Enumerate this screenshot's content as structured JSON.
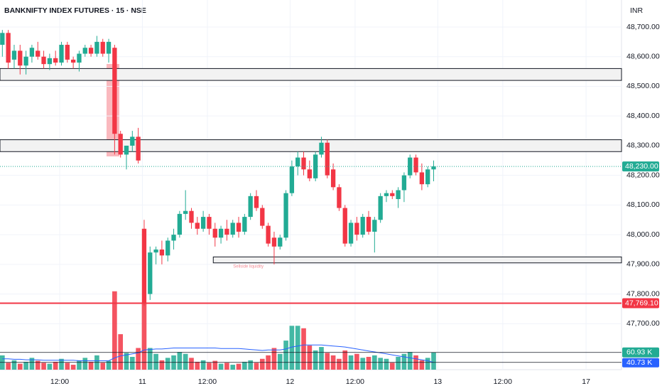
{
  "chart_data": {
    "type": "candlestick",
    "title": "BANKNIFTY INDEX FUTURES · 15 · NSE",
    "currency": "INR",
    "up_color": "#22ab94",
    "down_color": "#f23645",
    "categories": [
      null,
      null,
      null,
      null,
      null,
      null,
      null,
      null,
      null,
      null,
      null,
      null,
      null,
      null,
      null,
      null,
      null,
      null,
      null,
      null,
      null,
      null,
      null,
      null,
      null,
      null,
      null,
      null,
      null,
      null,
      null,
      null,
      null,
      null,
      null,
      null,
      null,
      null,
      null,
      null,
      null,
      null,
      null,
      null,
      null,
      null,
      null,
      null,
      null,
      null,
      null,
      null,
      null,
      null,
      null,
      null,
      null,
      null,
      null,
      null,
      null,
      null,
      null,
      null,
      null,
      null,
      null,
      null,
      null,
      null,
      null,
      null,
      null,
      null
    ],
    "open": [
      48640,
      48680,
      48590,
      48620,
      48570,
      48600,
      48620,
      48600,
      48575,
      48595,
      48580,
      48640,
      48590,
      48580,
      48610,
      48630,
      48610,
      48650,
      48610,
      48630,
      48340,
      48270,
      48300,
      48330,
      48020,
      47800,
      47940,
      47950,
      47930,
      47980,
      48000,
      48070,
      48080,
      48040,
      48020,
      48060,
      48020,
      47990,
      48020,
      48000,
      48040,
      48010,
      48060,
      48130,
      48090,
      48030,
      47990,
      47960,
      47990,
      48140,
      48230,
      48260,
      48220,
      48190,
      48270,
      48310,
      48220,
      48160,
      48090,
      47970,
      48040,
      48000,
      48060,
      48010,
      48050,
      48130,
      48140,
      48120,
      48150,
      48200,
      48260,
      48210,
      48170,
      48220
    ],
    "high": [
      48690,
      48690,
      48640,
      48640,
      48620,
      48640,
      48650,
      48620,
      48610,
      48620,
      48650,
      48650,
      48600,
      48620,
      48640,
      48640,
      48670,
      48660,
      48660,
      48640,
      48350,
      48300,
      48350,
      48360,
      48050,
      47960,
      47960,
      47980,
      47990,
      48020,
      48080,
      48150,
      48090,
      48060,
      48080,
      48070,
      48040,
      48030,
      48050,
      48050,
      48060,
      48070,
      48140,
      48150,
      48100,
      48040,
      48010,
      48000,
      48150,
      48250,
      48280,
      48280,
      48250,
      48280,
      48330,
      48320,
      48240,
      48170,
      48100,
      48050,
      48060,
      48070,
      48080,
      48060,
      48140,
      48150,
      48150,
      48160,
      48210,
      48270,
      48270,
      48240,
      48230,
      48250
    ],
    "low": [
      48600,
      48560,
      48560,
      48540,
      48540,
      48580,
      48590,
      48560,
      48555,
      48570,
      48570,
      48580,
      48560,
      48550,
      48600,
      48600,
      48600,
      48600,
      48580,
      48270,
      48260,
      48220,
      48280,
      48240,
      47760,
      47780,
      47900,
      47900,
      47910,
      47950,
      47990,
      48050,
      48020,
      48000,
      48010,
      48000,
      47960,
      47970,
      47980,
      47990,
      47990,
      48000,
      48050,
      48080,
      48020,
      47960,
      47900,
      47950,
      47980,
      48130,
      48200,
      48200,
      48180,
      48180,
      48260,
      48190,
      48150,
      48080,
      47960,
      47960,
      47980,
      47990,
      48000,
      47940,
      48040,
      48110,
      48120,
      48090,
      48110,
      48190,
      48200,
      48150,
      48160,
      48180
    ],
    "close": [
      48680,
      48580,
      48620,
      48570,
      48600,
      48630,
      48600,
      48575,
      48595,
      48580,
      48640,
      48590,
      48580,
      48610,
      48630,
      48610,
      48650,
      48610,
      48650,
      48340,
      48270,
      48300,
      48330,
      48250,
      47770,
      47940,
      47950,
      47930,
      47980,
      48000,
      48070,
      48080,
      48040,
      48020,
      48060,
      48020,
      47990,
      48020,
      48000,
      48040,
      48010,
      48060,
      48130,
      48090,
      48030,
      47970,
      47960,
      47990,
      48140,
      48230,
      48260,
      48220,
      48190,
      48270,
      48310,
      48200,
      48160,
      48090,
      47970,
      48040,
      48000,
      48060,
      48010,
      48050,
      48130,
      48140,
      48130,
      48150,
      48200,
      48260,
      48210,
      48170,
      48220,
      48230
    ],
    "volume": [
      55,
      40,
      45,
      38,
      42,
      50,
      44,
      40,
      38,
      42,
      48,
      40,
      36,
      45,
      50,
      42,
      55,
      40,
      44,
      185,
      98,
      60,
      52,
      70,
      160,
      70,
      58,
      45,
      50,
      55,
      62,
      58,
      50,
      42,
      45,
      40,
      44,
      38,
      40,
      36,
      38,
      42,
      45,
      40,
      48,
      55,
      70,
      58,
      85,
      115,
      115,
      110,
      75,
      65,
      72,
      60,
      55,
      48,
      65,
      55,
      58,
      50,
      52,
      55,
      50,
      48,
      40,
      52,
      58,
      62,
      55,
      45,
      50,
      60.93
    ],
    "volume_ma": [
      48,
      48,
      47,
      47,
      46,
      46,
      46,
      45,
      45,
      45,
      45,
      45,
      45,
      44,
      44,
      44,
      44,
      44,
      44,
      50,
      54,
      56,
      58,
      60,
      66,
      67,
      68,
      68,
      69,
      70,
      70,
      70,
      70,
      70,
      70,
      70,
      70,
      69,
      69,
      69,
      69,
      68,
      67,
      66,
      65,
      66,
      66,
      66,
      68,
      72,
      74,
      76,
      76,
      76,
      76,
      75,
      74,
      73,
      72,
      70,
      68,
      66,
      64,
      62,
      60,
      58,
      56,
      54,
      52,
      50,
      48,
      46,
      44,
      40.73
    ],
    "volume_label": "60.93 K",
    "volume_ma_label": "40.73 K",
    "volume_ma_color": "#2962ff",
    "volume_ylim": [
      26,
      776
    ],
    "ylim": [
      47545,
      48791
    ],
    "yticks": [
      {
        "value": 48700,
        "label": "48,700.00"
      },
      {
        "value": 48600,
        "label": "48,600.00"
      },
      {
        "value": 48500,
        "label": "48,500.00"
      },
      {
        "value": 48400,
        "label": "48,400.00"
      },
      {
        "value": 48300,
        "label": "48,300.00"
      },
      {
        "value": 48200,
        "label": "48,200.00"
      },
      {
        "value": 48100,
        "label": "48,100.00"
      },
      {
        "value": 48000,
        "label": "48,000.00"
      },
      {
        "value": 47900,
        "label": "47,900.00"
      },
      {
        "value": 47800,
        "label": "47,800.00"
      },
      {
        "value": 47700,
        "label": "47,700.00"
      }
    ],
    "xlim": [
      -0.4,
      104.8
    ],
    "xticks": [
      {
        "value": 9.7,
        "label": "12:00"
      },
      {
        "value": 23.7,
        "label": "11"
      },
      {
        "value": 34.7,
        "label": "12:00"
      },
      {
        "value": 48.7,
        "label": "12"
      },
      {
        "value": 59.7,
        "label": "12:00"
      },
      {
        "value": 73.7,
        "label": "13"
      },
      {
        "value": 84.7,
        "label": "12:00"
      },
      {
        "value": 98.8,
        "label": "17"
      }
    ],
    "zones": [
      {
        "low": 48520,
        "high": 48560
      },
      {
        "low": 48280,
        "high": 48320
      },
      {
        "low": 47905,
        "high": 47925,
        "x_start": 35.7,
        "label": "Sellside liquidity"
      }
    ],
    "level": {
      "value": 47769.1,
      "label": "47,769.10"
    },
    "last_price": {
      "value": 48230,
      "label": "48,230.00"
    }
  }
}
